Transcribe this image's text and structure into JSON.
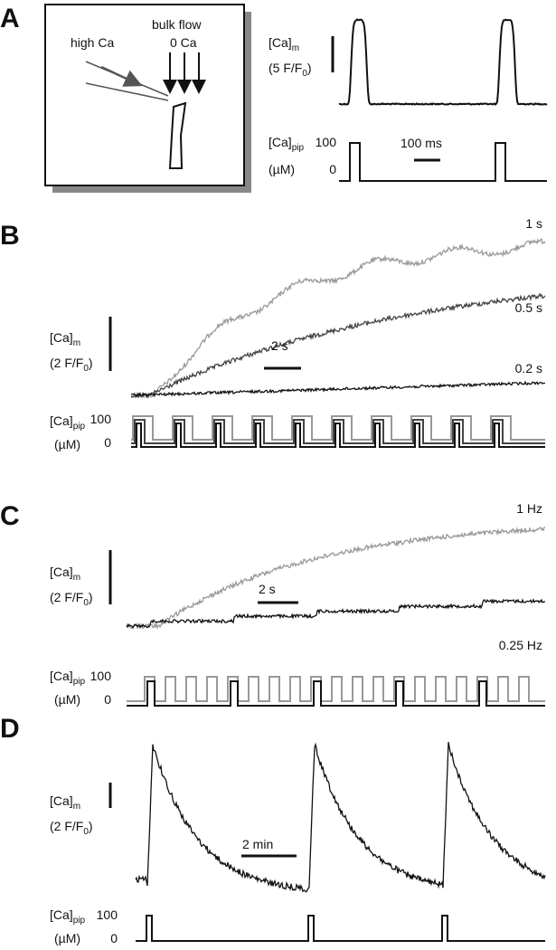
{
  "panel_a": {
    "letter": "A",
    "high_ca": "high Ca",
    "bulk_flow": "bulk flow",
    "zero_ca": "0 Ca",
    "ca_m": {
      "label": "[Ca]",
      "sub": "m"
    },
    "ca_m_scale": {
      "pre": "(5 F/F",
      "sub": "0",
      "post": ")"
    },
    "ca_pip": {
      "label": "[Ca]",
      "sub": "pip"
    },
    "pip_high": 100,
    "pip_low": 0,
    "pip_unit": "(µM)",
    "time_scale": "100 ms"
  },
  "panel_b": {
    "letter": "B",
    "ca_m": {
      "label": "[Ca]",
      "sub": "m"
    },
    "ca_m_scale": {
      "pre": "(2 F/F",
      "sub": "0",
      "post": ")"
    },
    "trace_labels": [
      "1 s",
      "0.5 s",
      "0.2 s"
    ],
    "time_scale": "2 s",
    "ca_pip": {
      "label": "[Ca]",
      "sub": "pip"
    },
    "pip_high": 100,
    "pip_low": 0,
    "pip_unit": "(µM)"
  },
  "panel_c": {
    "letter": "C",
    "ca_m": {
      "label": "[Ca]",
      "sub": "m"
    },
    "ca_m_scale": {
      "pre": "(2 F/F",
      "sub": "0",
      "post": ")"
    },
    "trace_labels": [
      "1 Hz",
      "0.25 Hz"
    ],
    "time_scale": "2 s",
    "ca_pip": {
      "label": "[Ca]",
      "sub": "pip"
    },
    "pip_high": 100,
    "pip_low": 0,
    "pip_unit": "(µM)"
  },
  "panel_d": {
    "letter": "D",
    "ca_m": {
      "label": "[Ca]",
      "sub": "m"
    },
    "ca_m_scale": {
      "pre": "(2 F/F",
      "sub": "0",
      "post": ")"
    },
    "time_scale": "2 min",
    "ca_pip": {
      "label": "[Ca]",
      "sub": "pip"
    },
    "pip_high": 100,
    "pip_low": 0,
    "pip_unit": "(µM)"
  }
}
